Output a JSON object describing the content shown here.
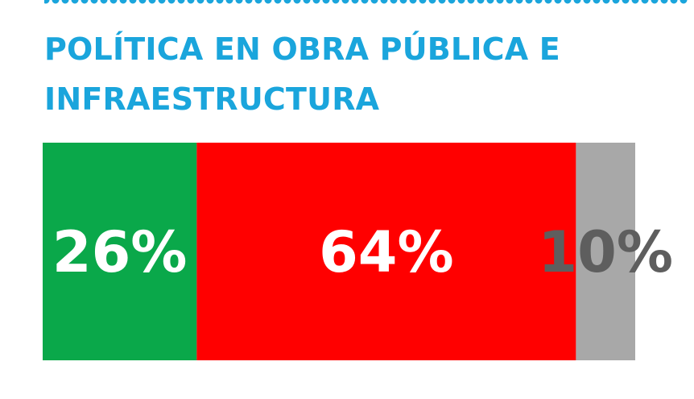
{
  "title_lines": [
    "POLÍTICA EN OBRA PÚBLICA E",
    "INFRAESTRUCTURA"
  ],
  "chart_data": {
    "type": "bar",
    "orientation": "horizontal-stacked-100",
    "title": "POLÍTICA EN OBRA PÚBLICA E INFRAESTRUCTURA",
    "series": [
      {
        "value": 26,
        "label": "26%",
        "color": "#0aa84a",
        "label_color": "#ffffff"
      },
      {
        "value": 64,
        "label": "64%",
        "color": "#ff0000",
        "label_color": "#ffffff"
      },
      {
        "value": 10,
        "label": "10%",
        "color": "#a8a8a8",
        "label_color": "#5e5e5e"
      }
    ],
    "total": 100,
    "grid": false,
    "legend": "none"
  },
  "colors": {
    "title": "#1aa5dc",
    "dots": "#1aa5dc"
  }
}
